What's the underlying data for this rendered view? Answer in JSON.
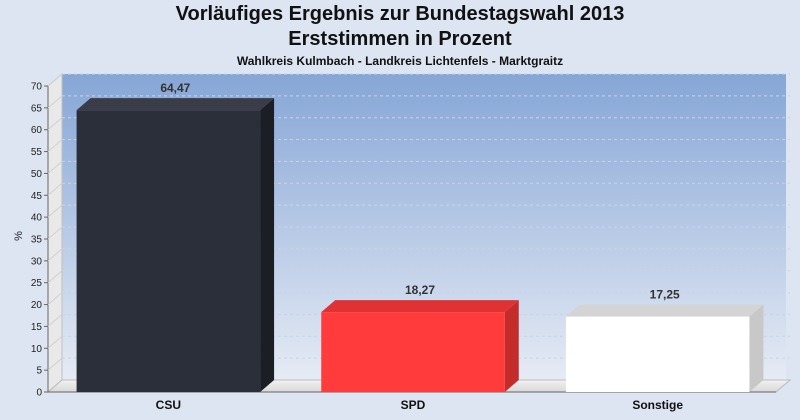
{
  "chart_data": {
    "type": "bar",
    "title": "Vorläufiges Ergebnis zur Bundestagswahl 2013",
    "subtitle": "Erststimmen in Prozent",
    "caption": "Wahlkreis Kulmbach - Landkreis Lichtenfels - Marktgraitz",
    "ylabel": "%",
    "xlabel": "",
    "ylim": [
      0,
      70
    ],
    "ytick_step": 5,
    "grid": true,
    "categories": [
      "CSU",
      "SPD",
      "Sonstige"
    ],
    "values": [
      64.47,
      18.27,
      17.25
    ],
    "value_labels": [
      "64,47",
      "18,27",
      "17,25"
    ],
    "colors": [
      "#2b2f3a",
      "#ff3b3b",
      "#ffffff"
    ],
    "side_colors": [
      "#1c1e26",
      "#c42b2b",
      "#c8c8c8"
    ],
    "top_colors": [
      "#3a3d48",
      "#e03232",
      "#d4d4d4"
    ]
  }
}
